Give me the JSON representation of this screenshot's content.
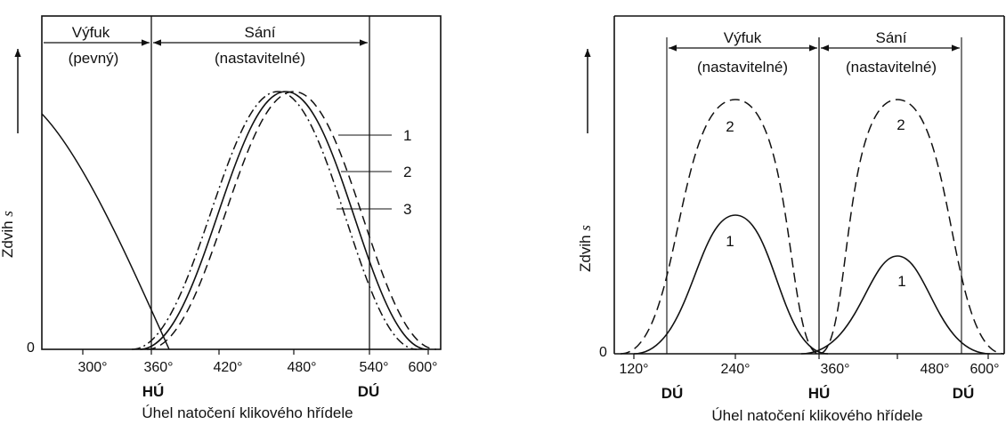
{
  "left_panel": {
    "ylabel": "Zdvih",
    "ylabel_symbol": "s",
    "zero_label": "0",
    "x_ticks": [
      "300°",
      "360°",
      "420°",
      "480°",
      "540°",
      "600°"
    ],
    "x_tick_values": [
      300,
      360,
      420,
      480,
      540,
      600
    ],
    "exhaust_label": "Výfuk",
    "exhaust_sub": "(pevný)",
    "intake_label": "Sání",
    "intake_sub": "(nastavitelné)",
    "hu_label": "HÚ",
    "du_label": "DÚ",
    "xlabel": "Úhel natočení klikového hřídele",
    "curve_labels": [
      "1",
      "2",
      "3"
    ],
    "curve_styles": [
      "dashed",
      "solid",
      "dash-dot"
    ]
  },
  "right_panel": {
    "ylabel": "Zdvih",
    "ylabel_symbol": "s",
    "zero_label": "0",
    "x_ticks": [
      "120°",
      "240°",
      "360°",
      "480°",
      "600°"
    ],
    "x_tick_values": [
      120,
      240,
      360,
      480,
      600
    ],
    "exhaust_label": "Výfuk",
    "exhaust_sub": "(nastavitelné)",
    "intake_label": "Sání",
    "intake_sub": "(nastavitelné)",
    "du_left_label": "DÚ",
    "hu_label": "HÚ",
    "du_right_label": "DÚ",
    "xlabel": "Úhel natočení klikového hřídele",
    "curve_labels": [
      "1",
      "2"
    ],
    "curve_styles": [
      "solid",
      "dashed"
    ]
  },
  "colors": {
    "ink": "#111111",
    "background": "#ffffff"
  }
}
